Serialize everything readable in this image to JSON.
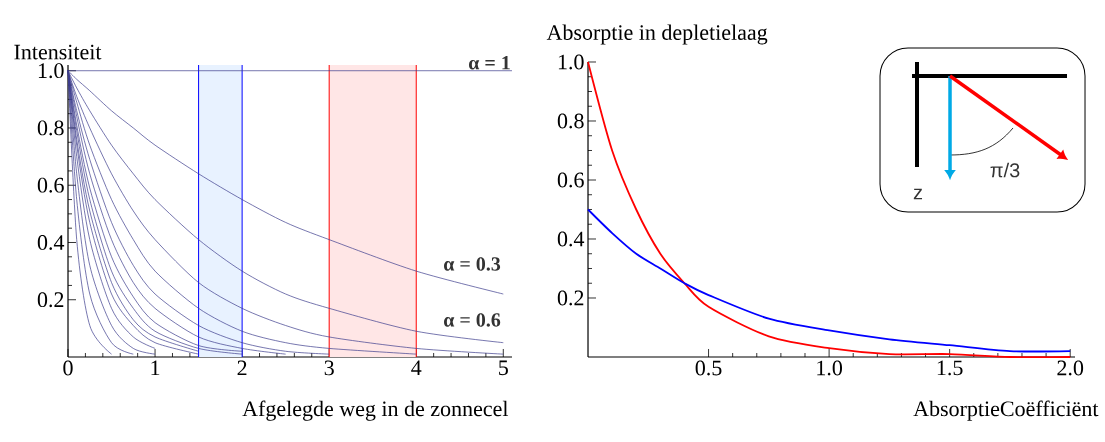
{
  "chart_data": [
    {
      "type": "line",
      "xlabel": "Afgelegde weg in de zonnecel",
      "ylabel": "Intensiteit",
      "x": [
        0,
        0.1,
        0.25,
        0.5,
        0.75,
        1,
        1.5,
        2,
        2.5,
        3,
        4,
        5
      ],
      "series": [
        {
          "color": "#3c3c8c",
          "values": [
            1,
            0.97,
            0.93,
            0.86,
            0.8,
            0.74,
            0.64,
            0.55,
            0.47,
            0.41,
            0.3,
            0.22
          ]
        },
        {
          "color": "#3c3c8c",
          "values": [
            1,
            0.94,
            0.86,
            0.74,
            0.64,
            0.55,
            0.41,
            0.3,
            0.22,
            0.17,
            0.09,
            0.05
          ]
        },
        {
          "color": "#3c3c8c",
          "values": [
            1,
            0.91,
            0.8,
            0.64,
            0.51,
            0.41,
            0.26,
            0.17,
            0.11,
            0.07,
            0.03,
            0.01
          ]
        },
        {
          "color": "#3c3c8c",
          "values": [
            1,
            0.89,
            0.74,
            0.55,
            0.41,
            0.3,
            0.17,
            0.09,
            0.05,
            0.03,
            0.01,
            null
          ]
        },
        {
          "color": "#3c3c8c",
          "values": [
            1,
            0.86,
            0.69,
            0.47,
            0.32,
            0.22,
            0.11,
            0.05,
            0.02,
            0.01,
            null,
            null
          ]
        },
        {
          "color": "#3c3c8c",
          "values": [
            1,
            0.84,
            0.64,
            0.41,
            0.26,
            0.17,
            0.07,
            0.03,
            0.01,
            null,
            null,
            null
          ]
        },
        {
          "color": "#3c3c8c",
          "values": [
            1,
            0.81,
            0.59,
            0.35,
            0.21,
            0.12,
            0.04,
            0.02,
            null,
            null,
            null,
            null
          ]
        },
        {
          "color": "#3c3c8c",
          "values": [
            1,
            0.79,
            0.55,
            0.3,
            0.17,
            0.09,
            0.03,
            0.01,
            null,
            null,
            null,
            null
          ]
        },
        {
          "color": "#3c3c8c",
          "values": [
            1,
            0.76,
            0.51,
            0.26,
            0.13,
            0.07,
            0.02,
            null,
            null,
            null,
            null,
            null
          ]
        },
        {
          "color": "#3c3c8c",
          "values": [
            1,
            0.74,
            0.47,
            0.22,
            0.11,
            0.05,
            0.01,
            null,
            null,
            null,
            null,
            null
          ]
        },
        {
          "color": "#3c3c8c",
          "values": [
            1,
            0.7,
            0.41,
            0.17,
            0.07,
            0.03,
            null,
            null,
            null,
            null,
            null,
            null
          ]
        },
        {
          "color": "#3c3c8c",
          "values": [
            1,
            0.64,
            0.32,
            0.11,
            0.03,
            0.01,
            null,
            null,
            null,
            null,
            null,
            null
          ]
        },
        {
          "color": "#3c3c8c",
          "values": [
            1,
            0.55,
            0.22,
            0.05,
            0.01,
            null,
            null,
            null,
            null,
            null,
            null,
            null
          ]
        },
        {
          "color": "#3c3c8c",
          "values": [
            1,
            0.41,
            0.11,
            0.01,
            null,
            null,
            null,
            null,
            null,
            null,
            null,
            null
          ]
        }
      ],
      "xlim": [
        0,
        5.1
      ],
      "ylim": [
        0,
        1.02
      ],
      "xticks": [
        0,
        1,
        2,
        3,
        4,
        5
      ],
      "yticks": [
        0.2,
        0.4,
        0.6,
        0.8,
        {
          "value": 1,
          "label": "1.0"
        }
      ],
      "bands": [
        {
          "axis": "x",
          "from": 1.5,
          "to": 2,
          "color": "#e8f2ff"
        },
        {
          "axis": "x",
          "from": 3,
          "to": 4,
          "color": "#ffe6e6"
        }
      ],
      "ref_lines": [
        {
          "axis": "x",
          "value": 1.5,
          "color": "#0000ff"
        },
        {
          "axis": "x",
          "value": 2,
          "color": "#0000ff"
        },
        {
          "axis": "x",
          "value": 3,
          "color": "#ff0000"
        },
        {
          "axis": "x",
          "value": 4,
          "color": "#ff0000"
        },
        {
          "axis": "y",
          "value": 1,
          "color": "#3c3c8c",
          "label": "α = 1"
        }
      ],
      "annotations": [
        "α = 0.3",
        "α = 0.6"
      ]
    },
    {
      "type": "line",
      "ylabel": "Absorptie in depletielaag",
      "xlabel": "AbsorptieCoëfficiënt",
      "x": [
        0,
        0.1,
        0.2,
        0.3,
        0.4,
        0.5,
        0.75,
        1,
        1.25,
        1.5,
        1.75,
        2
      ],
      "series": [
        {
          "color": "#ff0000",
          "values": [
            1,
            0.7,
            0.5,
            0.35,
            0.25,
            0.17,
            0.07,
            0.03,
            0.01,
            0.01,
            0,
            0
          ]
        },
        {
          "color": "#0000ff",
          "values": [
            0.5,
            0.42,
            0.35,
            0.3,
            0.25,
            0.21,
            0.13,
            0.09,
            0.06,
            0.04,
            0.02,
            0.02
          ]
        }
      ],
      "xlim": [
        0,
        2.02
      ],
      "ylim": [
        0,
        1.0
      ],
      "xticks": [
        0.5,
        {
          "value": 1,
          "label": "1.0"
        },
        1.5,
        {
          "value": 2,
          "label": "2.0"
        }
      ],
      "yticks": [
        0.2,
        0.4,
        0.6,
        0.8,
        {
          "value": 1,
          "label": "1.0"
        }
      ],
      "annotations": [
        "z",
        "π/3"
      ]
    }
  ]
}
